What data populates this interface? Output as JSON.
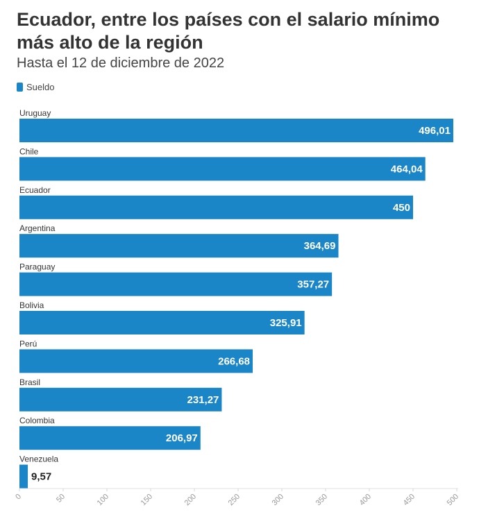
{
  "title": "Ecuador, entre los países con el salario mínimo más alto de la región",
  "subtitle": "Hasta el 12 de diciembre de 2022",
  "legend": {
    "label": "Sueldo",
    "color": "#1a86c8"
  },
  "chart_data": {
    "type": "bar",
    "orientation": "horizontal",
    "categories": [
      "Uruguay",
      "Chile",
      "Ecuador",
      "Argentina",
      "Paraguay",
      "Bolivia",
      "Perú",
      "Brasil",
      "Colombia",
      "Venezuela"
    ],
    "series": [
      {
        "name": "Sueldo",
        "values": [
          496.01,
          464.04,
          450,
          364.69,
          357.27,
          325.91,
          266.68,
          231.27,
          206.97,
          9.57
        ]
      }
    ],
    "value_labels": [
      "496,01",
      "464,04",
      "450",
      "364,69",
      "357,27",
      "325,91",
      "266,68",
      "231,27",
      "206,97",
      "9,57"
    ],
    "xlim": [
      0,
      500
    ],
    "xticks": [
      0,
      50,
      100,
      150,
      200,
      250,
      300,
      350,
      400,
      450,
      500
    ],
    "grid": false,
    "legend_position": "top-left",
    "bar_color": "#1a86c8"
  }
}
